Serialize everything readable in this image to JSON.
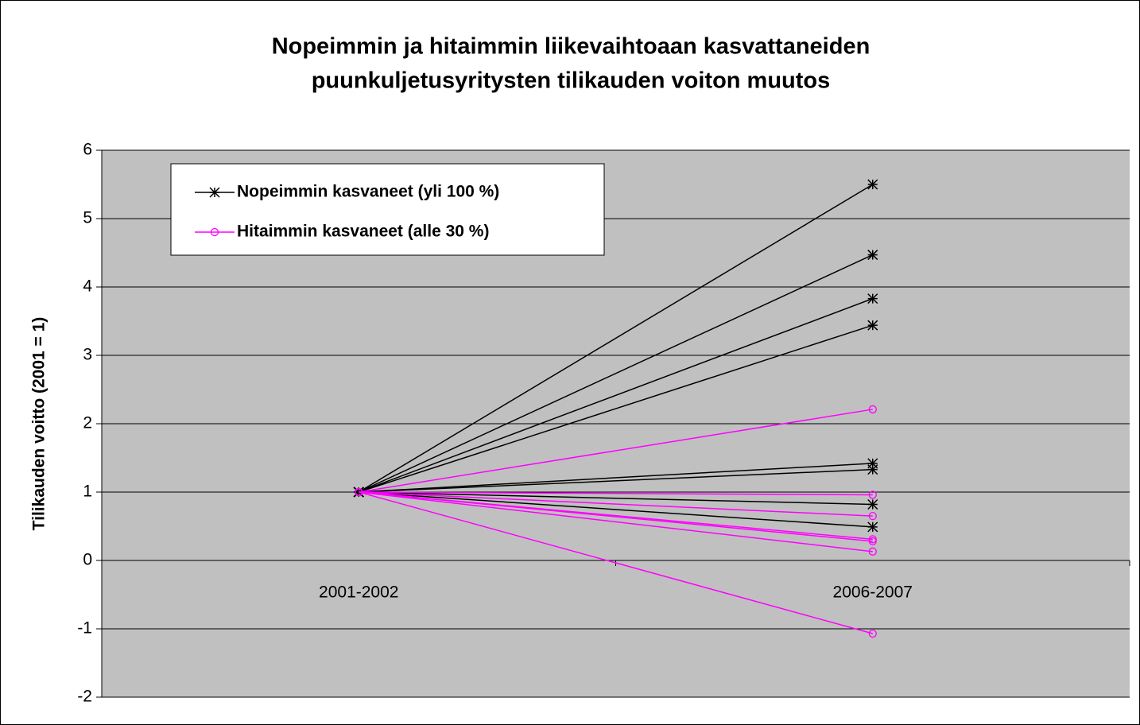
{
  "chart_data": {
    "type": "line",
    "title": [
      "Nopeimmin ja hitaimmin liikevaihtoaan kasvattaneiden",
      "puunkuljetusyritysten tilikauden voiton muutos"
    ],
    "y_label": "Tilikauden voitto (2001 = 1)",
    "categories": [
      "2001-2002",
      "2006-2007"
    ],
    "series": [
      {
        "name": "Nopeimmin kasvaneet (yli 100 %)",
        "color": "#000000",
        "marker": "star",
        "values": [
          [
            1,
            5.5
          ],
          [
            1,
            4.47
          ],
          [
            1,
            3.83
          ],
          [
            1,
            3.44
          ],
          [
            1,
            1.42
          ],
          [
            1,
            1.33
          ],
          [
            1,
            0.82
          ],
          [
            1,
            0.49
          ]
        ]
      },
      {
        "name": "Hitaimmin kasvaneet (alle 30 %)",
        "color": "#ff00ff",
        "marker": "circle",
        "values": [
          [
            1,
            2.21
          ],
          [
            1,
            0.96
          ],
          [
            1,
            0.65
          ],
          [
            1,
            0.31
          ],
          [
            1,
            0.28
          ],
          [
            1,
            0.13
          ],
          [
            1,
            -1.07
          ]
        ]
      }
    ],
    "ylim": [
      -2,
      6
    ],
    "yticks": [
      -2,
      -1,
      0,
      1,
      2,
      3,
      4,
      5,
      6
    ],
    "grid": true,
    "legend": "upper left",
    "background": "#c0c0c0"
  }
}
